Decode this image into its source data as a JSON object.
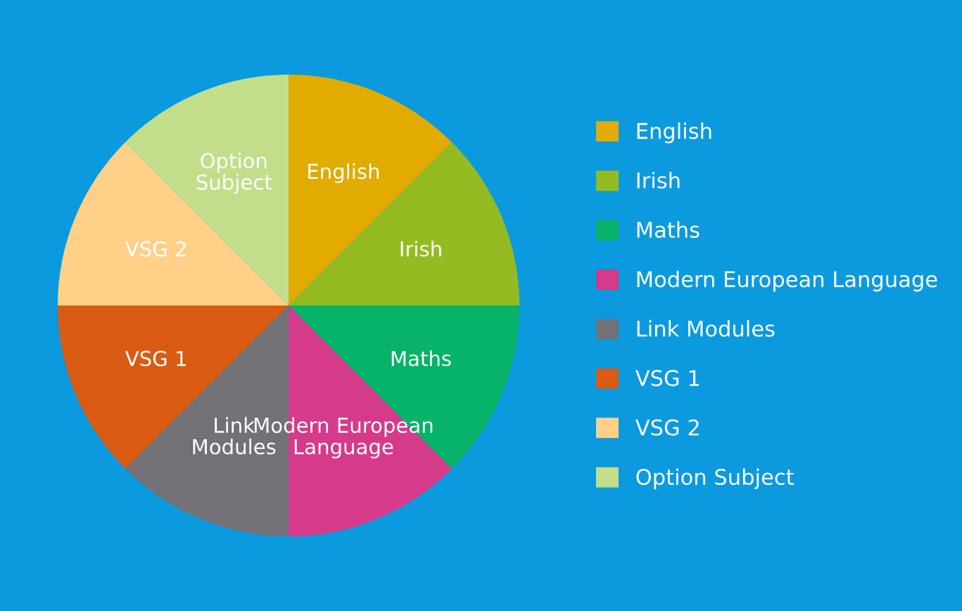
{
  "chart_data": {
    "type": "pie",
    "categories": [
      "English",
      "Irish",
      "Maths",
      "Modern European Language",
      "Link Modules",
      "VSG 1",
      "VSG 2",
      "Option Subject"
    ],
    "values": [
      12.5,
      12.5,
      12.5,
      12.5,
      12.5,
      12.5,
      12.5,
      12.5
    ],
    "colors": [
      "#e2ab00",
      "#95bb22",
      "#07b368",
      "#d63a8a",
      "#737177",
      "#d95b14",
      "#ffd088",
      "#c2de8a"
    ],
    "legend": "right"
  }
}
